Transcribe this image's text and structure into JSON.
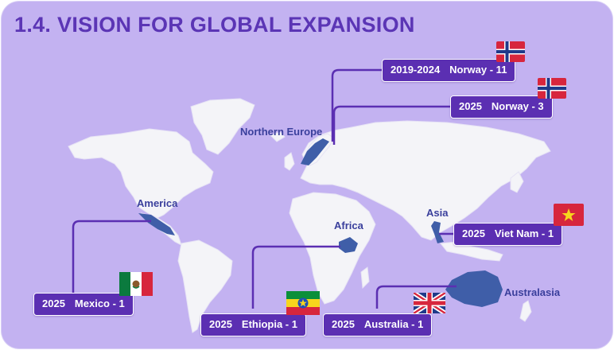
{
  "title": "1.4. VISION FOR GLOBAL EXPANSION",
  "regions": {
    "northern_europe": "Northern Europe",
    "america": "America",
    "africa": "Africa",
    "asia": "Asia",
    "australasia": "Australasia"
  },
  "callouts": [
    {
      "id": "norway-11",
      "year": "2019-2024",
      "label": "Norway - 11",
      "flag": "norway"
    },
    {
      "id": "norway-3",
      "year": "2025",
      "label": "Norway - 3",
      "flag": "norway"
    },
    {
      "id": "vietnam-1",
      "year": "2025",
      "label": "Viet Nam - 1",
      "flag": "vietnam"
    },
    {
      "id": "mexico-1",
      "year": "2025",
      "label": "Mexico - 1",
      "flag": "mexico"
    },
    {
      "id": "ethiopia-1",
      "year": "2025",
      "label": "Ethiopia - 1",
      "flag": "ethiopia"
    },
    {
      "id": "australia-1",
      "year": "2025",
      "label": "Australia - 1",
      "flag": "uk"
    }
  ],
  "colors": {
    "background": "#c3b2f1",
    "title": "#5b35b5",
    "callout_fill": "#5b2fb2",
    "land": "#f4f4f8",
    "highlight": "#3f5ea8",
    "connector": "#5b2fb2",
    "region_label": "#3a3f9c"
  }
}
